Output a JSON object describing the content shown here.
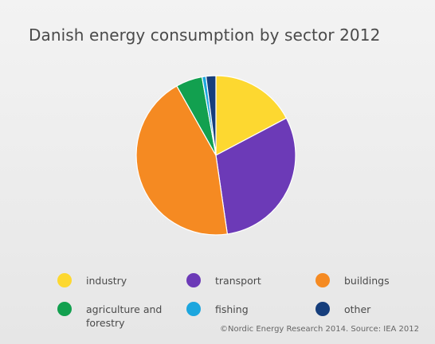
{
  "chart_data": {
    "type": "pie",
    "title": "Danish energy consumption by sector 2012",
    "categories": [
      "industry",
      "transport",
      "buildings",
      "agriculture and\nforestry",
      "fishing",
      "other"
    ],
    "values": [
      17.3,
      30.5,
      44.2,
      5.4,
      0.8,
      2.0
    ],
    "colors": [
      "#fdd830",
      "#6c3ab7",
      "#f58a22",
      "#12a04f",
      "#1ca6de",
      "#163e7c"
    ],
    "legend_position": "bottom"
  },
  "source": "©Nordic Energy Research 2014. Source: IEA 2012"
}
